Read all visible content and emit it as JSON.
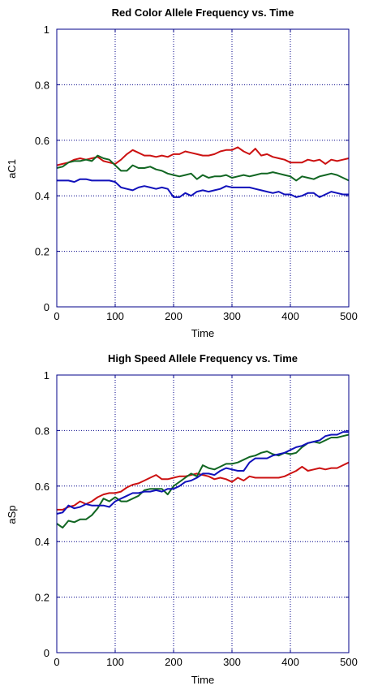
{
  "colors": {
    "red": "#cc1111",
    "green": "#116622",
    "blue": "#1111bb",
    "axis": "#000088",
    "grid": "#000088"
  },
  "chart_data": [
    {
      "type": "line",
      "title": "Red Color Allele Frequency vs. Time",
      "xlabel": "Time",
      "ylabel": "aC1",
      "xlim": [
        0,
        500
      ],
      "ylim": [
        0,
        1
      ],
      "xticks": [
        0,
        100,
        200,
        300,
        400,
        500
      ],
      "yticks": [
        0,
        0.2,
        0.4,
        0.6,
        0.8,
        1
      ],
      "xtick_labels": [
        "0",
        "100",
        "200",
        "300",
        "400",
        "500"
      ],
      "ytick_labels": [
        "0",
        "0.2",
        "0.4",
        "0.6",
        "0.8",
        "1"
      ],
      "x": [
        0,
        10,
        20,
        30,
        40,
        50,
        60,
        70,
        80,
        90,
        100,
        110,
        120,
        130,
        140,
        150,
        160,
        170,
        180,
        190,
        200,
        210,
        220,
        230,
        240,
        250,
        260,
        270,
        280,
        290,
        300,
        310,
        320,
        330,
        340,
        350,
        360,
        370,
        380,
        390,
        400,
        410,
        420,
        430,
        440,
        450,
        460,
        470,
        480,
        490,
        500
      ],
      "series": [
        {
          "name": "red",
          "color": "#cc1111",
          "values": [
            0.51,
            0.515,
            0.52,
            0.53,
            0.535,
            0.53,
            0.535,
            0.54,
            0.525,
            0.52,
            0.515,
            0.53,
            0.55,
            0.565,
            0.555,
            0.545,
            0.545,
            0.54,
            0.545,
            0.54,
            0.55,
            0.55,
            0.56,
            0.555,
            0.55,
            0.545,
            0.545,
            0.55,
            0.56,
            0.565,
            0.565,
            0.575,
            0.56,
            0.55,
            0.57,
            0.545,
            0.55,
            0.54,
            0.535,
            0.53,
            0.52,
            0.52,
            0.52,
            0.53,
            0.525,
            0.53,
            0.515,
            0.53,
            0.525,
            0.53,
            0.535
          ]
        },
        {
          "name": "green",
          "color": "#116622",
          "values": [
            0.5,
            0.505,
            0.52,
            0.525,
            0.525,
            0.53,
            0.525,
            0.545,
            0.535,
            0.53,
            0.51,
            0.49,
            0.49,
            0.51,
            0.5,
            0.5,
            0.505,
            0.495,
            0.49,
            0.48,
            0.475,
            0.47,
            0.475,
            0.48,
            0.46,
            0.475,
            0.465,
            0.47,
            0.47,
            0.475,
            0.465,
            0.47,
            0.475,
            0.47,
            0.475,
            0.48,
            0.48,
            0.485,
            0.48,
            0.475,
            0.47,
            0.455,
            0.47,
            0.465,
            0.46,
            0.47,
            0.475,
            0.48,
            0.475,
            0.465,
            0.455
          ]
        },
        {
          "name": "blue",
          "color": "#1111bb",
          "values": [
            0.455,
            0.455,
            0.455,
            0.45,
            0.46,
            0.46,
            0.455,
            0.455,
            0.455,
            0.455,
            0.45,
            0.43,
            0.425,
            0.42,
            0.43,
            0.435,
            0.43,
            0.425,
            0.43,
            0.425,
            0.395,
            0.395,
            0.41,
            0.4,
            0.415,
            0.42,
            0.415,
            0.42,
            0.425,
            0.435,
            0.43,
            0.43,
            0.43,
            0.43,
            0.425,
            0.42,
            0.415,
            0.41,
            0.415,
            0.405,
            0.405,
            0.395,
            0.4,
            0.41,
            0.41,
            0.395,
            0.405,
            0.415,
            0.41,
            0.405,
            0.405
          ]
        }
      ]
    },
    {
      "type": "line",
      "title": "High Speed Allele Frequency vs. Time",
      "xlabel": "Time",
      "ylabel": "aSp",
      "xlim": [
        0,
        500
      ],
      "ylim": [
        0,
        1
      ],
      "xticks": [
        0,
        100,
        200,
        300,
        400,
        500
      ],
      "yticks": [
        0,
        0.2,
        0.4,
        0.6,
        0.8,
        1
      ],
      "xtick_labels": [
        "0",
        "100",
        "200",
        "300",
        "400",
        "500"
      ],
      "ytick_labels": [
        "0",
        "0.2",
        "0.4",
        "0.6",
        "0.8",
        "1"
      ],
      "x": [
        0,
        10,
        20,
        30,
        40,
        50,
        60,
        70,
        80,
        90,
        100,
        110,
        120,
        130,
        140,
        150,
        160,
        170,
        180,
        190,
        200,
        210,
        220,
        230,
        240,
        250,
        260,
        270,
        280,
        290,
        300,
        310,
        320,
        330,
        340,
        350,
        360,
        370,
        380,
        390,
        400,
        410,
        420,
        430,
        440,
        450,
        460,
        470,
        480,
        490,
        500
      ],
      "series": [
        {
          "name": "red",
          "color": "#cc1111",
          "values": [
            0.515,
            0.515,
            0.525,
            0.53,
            0.545,
            0.535,
            0.545,
            0.56,
            0.57,
            0.575,
            0.575,
            0.58,
            0.595,
            0.605,
            0.61,
            0.62,
            0.63,
            0.64,
            0.625,
            0.625,
            0.63,
            0.635,
            0.635,
            0.64,
            0.645,
            0.64,
            0.635,
            0.625,
            0.63,
            0.625,
            0.615,
            0.63,
            0.62,
            0.635,
            0.63,
            0.63,
            0.63,
            0.63,
            0.63,
            0.635,
            0.645,
            0.655,
            0.67,
            0.655,
            0.66,
            0.665,
            0.66,
            0.665,
            0.665,
            0.675,
            0.685
          ]
        },
        {
          "name": "green",
          "color": "#116622",
          "values": [
            0.465,
            0.45,
            0.475,
            0.47,
            0.48,
            0.48,
            0.495,
            0.52,
            0.555,
            0.545,
            0.56,
            0.545,
            0.545,
            0.555,
            0.565,
            0.585,
            0.59,
            0.59,
            0.59,
            0.57,
            0.6,
            0.615,
            0.63,
            0.645,
            0.635,
            0.675,
            0.665,
            0.66,
            0.67,
            0.68,
            0.68,
            0.685,
            0.695,
            0.705,
            0.71,
            0.72,
            0.725,
            0.715,
            0.71,
            0.72,
            0.715,
            0.72,
            0.74,
            0.755,
            0.76,
            0.755,
            0.765,
            0.775,
            0.775,
            0.78,
            0.785
          ]
        },
        {
          "name": "blue",
          "color": "#1111bb",
          "values": [
            0.5,
            0.505,
            0.53,
            0.52,
            0.525,
            0.535,
            0.53,
            0.53,
            0.53,
            0.525,
            0.545,
            0.555,
            0.565,
            0.575,
            0.575,
            0.58,
            0.58,
            0.585,
            0.58,
            0.59,
            0.59,
            0.6,
            0.615,
            0.62,
            0.63,
            0.645,
            0.645,
            0.64,
            0.655,
            0.665,
            0.66,
            0.655,
            0.655,
            0.685,
            0.7,
            0.7,
            0.7,
            0.71,
            0.715,
            0.72,
            0.73,
            0.74,
            0.745,
            0.755,
            0.76,
            0.765,
            0.78,
            0.785,
            0.785,
            0.795,
            0.795
          ]
        }
      ]
    }
  ]
}
